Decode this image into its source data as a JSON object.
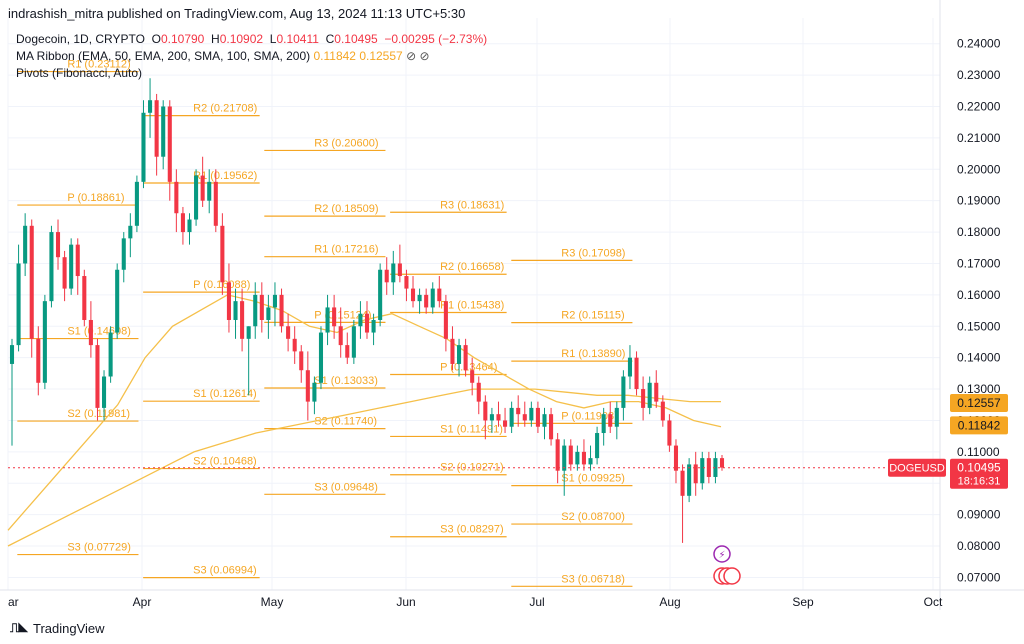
{
  "header": {
    "attribution": "indrashish_mitra published on TradingView.com, Aug 13, 2024 11:13 UTC+5:30"
  },
  "legend": {
    "symbol": "Dogecoin, 1D, CRYPTO",
    "o_label": "O",
    "o_value": "0.10790",
    "h_label": "H",
    "h_value": "0.10902",
    "l_label": "L",
    "l_value": "0.10411",
    "c_label": "C",
    "c_value": "0.10495",
    "change": "−0.00295 (−2.73%)",
    "ma_label": "MA Ribbon (EMA, 50, EMA, 200, SMA, 100, SMA, 200)",
    "ma_values": [
      "0.11842",
      "0.12557"
    ],
    "ma_extra": "⊘ ⊘",
    "pivots_label": "Pivots (Fibonacci, Auto)"
  },
  "footer": {
    "brand": "TradingView",
    "logo": "tradingview-logo-icon"
  },
  "colors": {
    "up": "#089981",
    "down": "#f23645",
    "pivot": "#f5a623",
    "ma": "#f5c04a",
    "price_tag": "#f23645"
  },
  "chart_data": {
    "type": "candlestick",
    "symbol": "DOGEUSD",
    "ylim": [
      0.066,
      0.245
    ],
    "y_ticks": [
      "0.24000",
      "0.23000",
      "0.22000",
      "0.21000",
      "0.20000",
      "0.19000",
      "0.18000",
      "0.17000",
      "0.16000",
      "0.15000",
      "0.14000",
      "0.13000",
      "0.12000",
      "0.11000",
      "0.10000",
      "0.09000",
      "0.08000",
      "0.07000"
    ],
    "x_ticks": [
      "ar",
      "Apr",
      "May",
      "Jun",
      "Jul",
      "Aug",
      "Sep",
      "Oct"
    ],
    "last_price": "0.10495",
    "countdown": "18:16:31",
    "ma_tags": [
      "0.12557",
      "0.11842"
    ],
    "candles": [
      [
        0.138,
        0.146,
        0.112,
        0.144
      ],
      [
        0.144,
        0.176,
        0.142,
        0.17
      ],
      [
        0.17,
        0.186,
        0.166,
        0.182
      ],
      [
        0.182,
        0.184,
        0.14,
        0.146
      ],
      [
        0.146,
        0.15,
        0.128,
        0.132
      ],
      [
        0.132,
        0.16,
        0.13,
        0.158
      ],
      [
        0.158,
        0.182,
        0.156,
        0.18
      ],
      [
        0.18,
        0.184,
        0.168,
        0.172
      ],
      [
        0.172,
        0.174,
        0.158,
        0.162
      ],
      [
        0.162,
        0.178,
        0.16,
        0.176
      ],
      [
        0.176,
        0.178,
        0.16,
        0.166
      ],
      [
        0.166,
        0.168,
        0.15,
        0.152
      ],
      [
        0.152,
        0.158,
        0.14,
        0.144
      ],
      [
        0.144,
        0.146,
        0.12,
        0.124
      ],
      [
        0.124,
        0.136,
        0.12,
        0.134
      ],
      [
        0.134,
        0.15,
        0.132,
        0.148
      ],
      [
        0.148,
        0.17,
        0.146,
        0.168
      ],
      [
        0.168,
        0.18,
        0.164,
        0.178
      ],
      [
        0.178,
        0.186,
        0.172,
        0.182
      ],
      [
        0.182,
        0.198,
        0.18,
        0.196
      ],
      [
        0.196,
        0.222,
        0.194,
        0.218
      ],
      [
        0.218,
        0.229,
        0.21,
        0.222
      ],
      [
        0.222,
        0.224,
        0.198,
        0.204
      ],
      [
        0.204,
        0.222,
        0.2,
        0.22
      ],
      [
        0.22,
        0.222,
        0.19,
        0.196
      ],
      [
        0.196,
        0.2,
        0.18,
        0.186
      ],
      [
        0.186,
        0.188,
        0.176,
        0.18
      ],
      [
        0.18,
        0.186,
        0.176,
        0.184
      ],
      [
        0.184,
        0.2,
        0.182,
        0.198
      ],
      [
        0.198,
        0.204,
        0.188,
        0.19
      ],
      [
        0.19,
        0.2,
        0.186,
        0.196
      ],
      [
        0.196,
        0.2,
        0.18,
        0.182
      ],
      [
        0.182,
        0.186,
        0.16,
        0.164
      ],
      [
        0.164,
        0.17,
        0.148,
        0.152
      ],
      [
        0.152,
        0.162,
        0.146,
        0.158
      ],
      [
        0.158,
        0.162,
        0.142,
        0.146
      ],
      [
        0.146,
        0.15,
        0.128,
        0.15
      ],
      [
        0.15,
        0.164,
        0.146,
        0.16
      ],
      [
        0.16,
        0.164,
        0.148,
        0.152
      ],
      [
        0.152,
        0.16,
        0.146,
        0.156
      ],
      [
        0.156,
        0.164,
        0.15,
        0.16
      ],
      [
        0.16,
        0.162,
        0.148,
        0.15
      ],
      [
        0.15,
        0.154,
        0.142,
        0.146
      ],
      [
        0.146,
        0.15,
        0.138,
        0.142
      ],
      [
        0.142,
        0.144,
        0.132,
        0.136
      ],
      [
        0.136,
        0.142,
        0.12,
        0.126
      ],
      [
        0.126,
        0.134,
        0.122,
        0.132
      ],
      [
        0.132,
        0.15,
        0.13,
        0.148
      ],
      [
        0.148,
        0.16,
        0.144,
        0.156
      ],
      [
        0.156,
        0.16,
        0.146,
        0.15
      ],
      [
        0.15,
        0.156,
        0.14,
        0.144
      ],
      [
        0.144,
        0.148,
        0.138,
        0.14
      ],
      [
        0.14,
        0.152,
        0.138,
        0.15
      ],
      [
        0.15,
        0.158,
        0.146,
        0.154
      ],
      [
        0.154,
        0.158,
        0.146,
        0.148
      ],
      [
        0.148,
        0.154,
        0.144,
        0.152
      ],
      [
        0.152,
        0.17,
        0.15,
        0.168
      ],
      [
        0.168,
        0.172,
        0.16,
        0.164
      ],
      [
        0.164,
        0.174,
        0.16,
        0.17
      ],
      [
        0.17,
        0.176,
        0.164,
        0.166
      ],
      [
        0.166,
        0.168,
        0.158,
        0.162
      ],
      [
        0.162,
        0.166,
        0.156,
        0.158
      ],
      [
        0.158,
        0.162,
        0.154,
        0.16
      ],
      [
        0.16,
        0.162,
        0.154,
        0.156
      ],
      [
        0.156,
        0.164,
        0.154,
        0.162
      ],
      [
        0.162,
        0.166,
        0.156,
        0.158
      ],
      [
        0.158,
        0.16,
        0.142,
        0.146
      ],
      [
        0.146,
        0.15,
        0.136,
        0.138
      ],
      [
        0.138,
        0.146,
        0.134,
        0.144
      ],
      [
        0.144,
        0.146,
        0.134,
        0.136
      ],
      [
        0.136,
        0.14,
        0.128,
        0.132
      ],
      [
        0.132,
        0.134,
        0.122,
        0.126
      ],
      [
        0.126,
        0.128,
        0.114,
        0.12
      ],
      [
        0.12,
        0.124,
        0.116,
        0.122
      ],
      [
        0.122,
        0.126,
        0.118,
        0.12
      ],
      [
        0.12,
        0.124,
        0.116,
        0.118
      ],
      [
        0.118,
        0.126,
        0.116,
        0.124
      ],
      [
        0.124,
        0.128,
        0.118,
        0.122
      ],
      [
        0.122,
        0.126,
        0.118,
        0.12
      ],
      [
        0.12,
        0.126,
        0.118,
        0.124
      ],
      [
        0.124,
        0.126,
        0.116,
        0.118
      ],
      [
        0.118,
        0.124,
        0.114,
        0.122
      ],
      [
        0.122,
        0.124,
        0.112,
        0.114
      ],
      [
        0.114,
        0.116,
        0.1,
        0.104
      ],
      [
        0.104,
        0.114,
        0.096,
        0.112
      ],
      [
        0.112,
        0.114,
        0.104,
        0.106
      ],
      [
        0.106,
        0.112,
        0.104,
        0.11
      ],
      [
        0.11,
        0.114,
        0.104,
        0.106
      ],
      [
        0.106,
        0.112,
        0.104,
        0.108
      ],
      [
        0.108,
        0.118,
        0.106,
        0.116
      ],
      [
        0.116,
        0.124,
        0.112,
        0.122
      ],
      [
        0.122,
        0.126,
        0.116,
        0.118
      ],
      [
        0.118,
        0.126,
        0.114,
        0.124
      ],
      [
        0.124,
        0.136,
        0.12,
        0.134
      ],
      [
        0.134,
        0.144,
        0.13,
        0.14
      ],
      [
        0.14,
        0.142,
        0.128,
        0.13
      ],
      [
        0.13,
        0.134,
        0.12,
        0.124
      ],
      [
        0.124,
        0.134,
        0.122,
        0.132
      ],
      [
        0.132,
        0.136,
        0.124,
        0.126
      ],
      [
        0.126,
        0.128,
        0.118,
        0.12
      ],
      [
        0.12,
        0.122,
        0.11,
        0.112
      ],
      [
        0.112,
        0.114,
        0.1,
        0.104
      ],
      [
        0.104,
        0.106,
        0.081,
        0.096
      ],
      [
        0.096,
        0.108,
        0.094,
        0.106
      ],
      [
        0.106,
        0.11,
        0.096,
        0.1
      ],
      [
        0.1,
        0.11,
        0.098,
        0.108
      ],
      [
        0.108,
        0.11,
        0.1,
        0.102
      ],
      [
        0.102,
        0.11,
        0.1,
        0.108
      ],
      [
        0.108,
        0.109,
        0.104,
        0.105
      ]
    ],
    "ma_fast": [
      0.085,
      0.095,
      0.105,
      0.115,
      0.125,
      0.14,
      0.15,
      0.155,
      0.16,
      0.158,
      0.155,
      0.15,
      0.148,
      0.152,
      0.154,
      0.15,
      0.146,
      0.14,
      0.135,
      0.13,
      0.126,
      0.124,
      0.126,
      0.126,
      0.124,
      0.12,
      0.118
    ],
    "ma_slow": [
      0.08,
      0.085,
      0.09,
      0.095,
      0.1,
      0.105,
      0.11,
      0.113,
      0.116,
      0.118,
      0.12,
      0.122,
      0.124,
      0.126,
      0.128,
      0.13,
      0.13,
      0.13,
      0.129,
      0.128,
      0.128,
      0.127,
      0.126,
      0.126
    ],
    "pivots": [
      {
        "x0": 0.01,
        "x1": 0.14,
        "level": "R1",
        "value": 0.23112
      },
      {
        "x0": 0.01,
        "x1": 0.14,
        "level": "P",
        "value": 0.18861
      },
      {
        "x0": 0.01,
        "x1": 0.14,
        "level": "S1",
        "value": 0.14608
      },
      {
        "x0": 0.01,
        "x1": 0.14,
        "level": "S2",
        "value": 0.11981
      },
      {
        "x0": 0.01,
        "x1": 0.14,
        "level": "S3",
        "value": 0.07729
      },
      {
        "x0": 0.145,
        "x1": 0.27,
        "level": "R2",
        "value": 0.21708
      },
      {
        "x0": 0.145,
        "x1": 0.27,
        "level": "R1",
        "value": 0.19562
      },
      {
        "x0": 0.145,
        "x1": 0.27,
        "level": "P",
        "value": 0.16088
      },
      {
        "x0": 0.145,
        "x1": 0.27,
        "level": "S1",
        "value": 0.12614
      },
      {
        "x0": 0.145,
        "x1": 0.27,
        "level": "S2",
        "value": 0.10468
      },
      {
        "x0": 0.145,
        "x1": 0.27,
        "level": "S3",
        "value": 0.06994
      },
      {
        "x0": 0.275,
        "x1": 0.405,
        "level": "R3",
        "value": 0.206
      },
      {
        "x0": 0.275,
        "x1": 0.405,
        "level": "R2",
        "value": 0.18509
      },
      {
        "x0": 0.275,
        "x1": 0.405,
        "level": "R1",
        "value": 0.17216
      },
      {
        "x0": 0.275,
        "x1": 0.405,
        "level": "P",
        "value": 0.15124
      },
      {
        "x0": 0.275,
        "x1": 0.405,
        "level": "S1",
        "value": 0.13033
      },
      {
        "x0": 0.275,
        "x1": 0.405,
        "level": "S2",
        "value": 0.1174
      },
      {
        "x0": 0.275,
        "x1": 0.405,
        "level": "S3",
        "value": 0.09648
      },
      {
        "x0": 0.41,
        "x1": 0.535,
        "level": "R3",
        "value": 0.18631
      },
      {
        "x0": 0.41,
        "x1": 0.535,
        "level": "R2",
        "value": 0.16658
      },
      {
        "x0": 0.41,
        "x1": 0.535,
        "level": "R1",
        "value": 0.15438
      },
      {
        "x0": 0.41,
        "x1": 0.535,
        "level": "P",
        "value": 0.13464
      },
      {
        "x0": 0.41,
        "x1": 0.535,
        "level": "S1",
        "value": 0.11491
      },
      {
        "x0": 0.41,
        "x1": 0.535,
        "level": "S2",
        "value": 0.10271
      },
      {
        "x0": 0.41,
        "x1": 0.535,
        "level": "S3",
        "value": 0.08297
      },
      {
        "x0": 0.54,
        "x1": 0.67,
        "level": "R3",
        "value": 0.17098
      },
      {
        "x0": 0.54,
        "x1": 0.67,
        "level": "R2",
        "value": 0.15115
      },
      {
        "x0": 0.54,
        "x1": 0.67,
        "level": "R1",
        "value": 0.1389
      },
      {
        "x0": 0.54,
        "x1": 0.67,
        "level": "P",
        "value": 0.11908
      },
      {
        "x0": 0.54,
        "x1": 0.67,
        "level": "S1",
        "value": 0.09925
      },
      {
        "x0": 0.54,
        "x1": 0.67,
        "level": "S2",
        "value": 0.087
      },
      {
        "x0": 0.54,
        "x1": 0.67,
        "level": "S3",
        "value": 0.06718
      }
    ]
  }
}
